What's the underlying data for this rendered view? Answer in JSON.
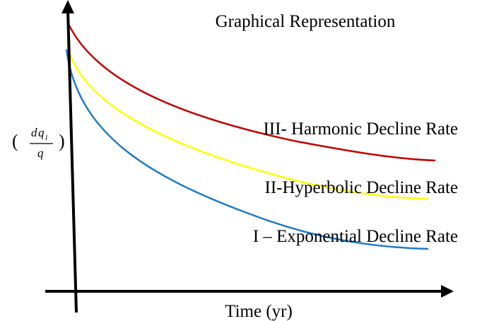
{
  "title": "Graphical Representation",
  "x_axis": {
    "label": "Time (yr)"
  },
  "y_axis": {
    "open_paren": "(",
    "numerator_d": "d",
    "numerator_q": "q",
    "numerator_sub": "i",
    "denominator": "q",
    "close_paren": ")"
  },
  "curves": [
    {
      "name": "III- Harmonic Decline Rate",
      "color": "#c00000"
    },
    {
      "name": "II-Hyperbolic Decline Rate",
      "color": "#ffff00"
    },
    {
      "name": "I – Exponential Decline Rate",
      "color": "#1f7bc6"
    }
  ],
  "axis_color": "#000000"
}
